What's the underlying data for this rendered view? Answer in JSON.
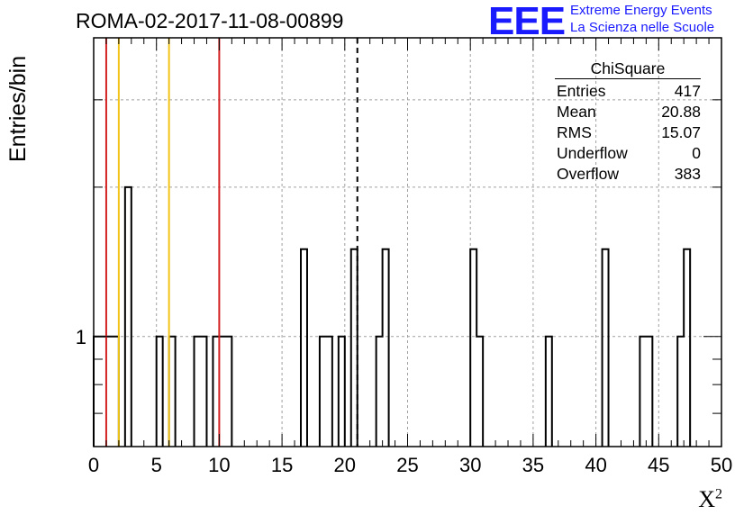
{
  "title": "ROMA-02-2017-11-08-00899",
  "logo": {
    "mark": "EEE",
    "line1": "Extreme Energy Events",
    "line2": "La Scienza nelle Scuole"
  },
  "stats_box": {
    "title": "ChiSquare",
    "rows": [
      {
        "label": "Entries",
        "value": "417"
      },
      {
        "label": "Mean",
        "value": "20.88"
      },
      {
        "label": "RMS",
        "value": "15.07"
      },
      {
        "label": "Underflow",
        "value": "0"
      },
      {
        "label": "Overflow",
        "value": "383"
      }
    ]
  },
  "colors": {
    "red_line": "#d42020",
    "yellow_line": "#f2c418",
    "histogram": "#000000",
    "grid": "#a0a0a0",
    "logo": "#1a1aff"
  },
  "chart_data": {
    "type": "bar",
    "histogram_name": "ChiSquare",
    "xlabel": "X",
    "xlabel_superscript": "2",
    "ylabel": "Entries/bin",
    "y_scale": "log",
    "xlim": [
      0,
      50
    ],
    "ylim": [
      0.6,
      4
    ],
    "x_ticks": [
      "0",
      "5",
      "10",
      "15",
      "20",
      "25",
      "30",
      "35",
      "40",
      "45",
      "50"
    ],
    "y_tick_labels": [
      {
        "value": 1,
        "label": "1"
      }
    ],
    "bin_width": 0.5,
    "bins": [
      {
        "x": 0.0,
        "count": 1
      },
      {
        "x": 0.5,
        "count": 1
      },
      {
        "x": 1.0,
        "count": 1
      },
      {
        "x": 1.5,
        "count": 1
      },
      {
        "x": 2.5,
        "count": 2
      },
      {
        "x": 5.0,
        "count": 1
      },
      {
        "x": 6.0,
        "count": 1
      },
      {
        "x": 8.0,
        "count": 1
      },
      {
        "x": 8.5,
        "count": 1
      },
      {
        "x": 9.5,
        "count": 1
      },
      {
        "x": 10.0,
        "count": 1
      },
      {
        "x": 10.5,
        "count": 1
      },
      {
        "x": 16.5,
        "count": 1.5
      },
      {
        "x": 18.0,
        "count": 1
      },
      {
        "x": 18.5,
        "count": 1
      },
      {
        "x": 19.5,
        "count": 1
      },
      {
        "x": 20.5,
        "count": 1.5
      },
      {
        "x": 22.5,
        "count": 1
      },
      {
        "x": 23.0,
        "count": 1.5
      },
      {
        "x": 30.0,
        "count": 1.5
      },
      {
        "x": 30.5,
        "count": 1
      },
      {
        "x": 36.0,
        "count": 1
      },
      {
        "x": 40.5,
        "count": 1.5
      },
      {
        "x": 43.5,
        "count": 1
      },
      {
        "x": 44.0,
        "count": 1
      },
      {
        "x": 46.5,
        "count": 1
      },
      {
        "x": 47.0,
        "count": 1.5
      }
    ],
    "vertical_lines": [
      {
        "x": 1,
        "color": "red"
      },
      {
        "x": 2,
        "color": "yellow"
      },
      {
        "x": 6,
        "color": "yellow"
      },
      {
        "x": 10,
        "color": "red"
      },
      {
        "x": 21,
        "color": "black-dashed"
      }
    ],
    "grid": true
  }
}
